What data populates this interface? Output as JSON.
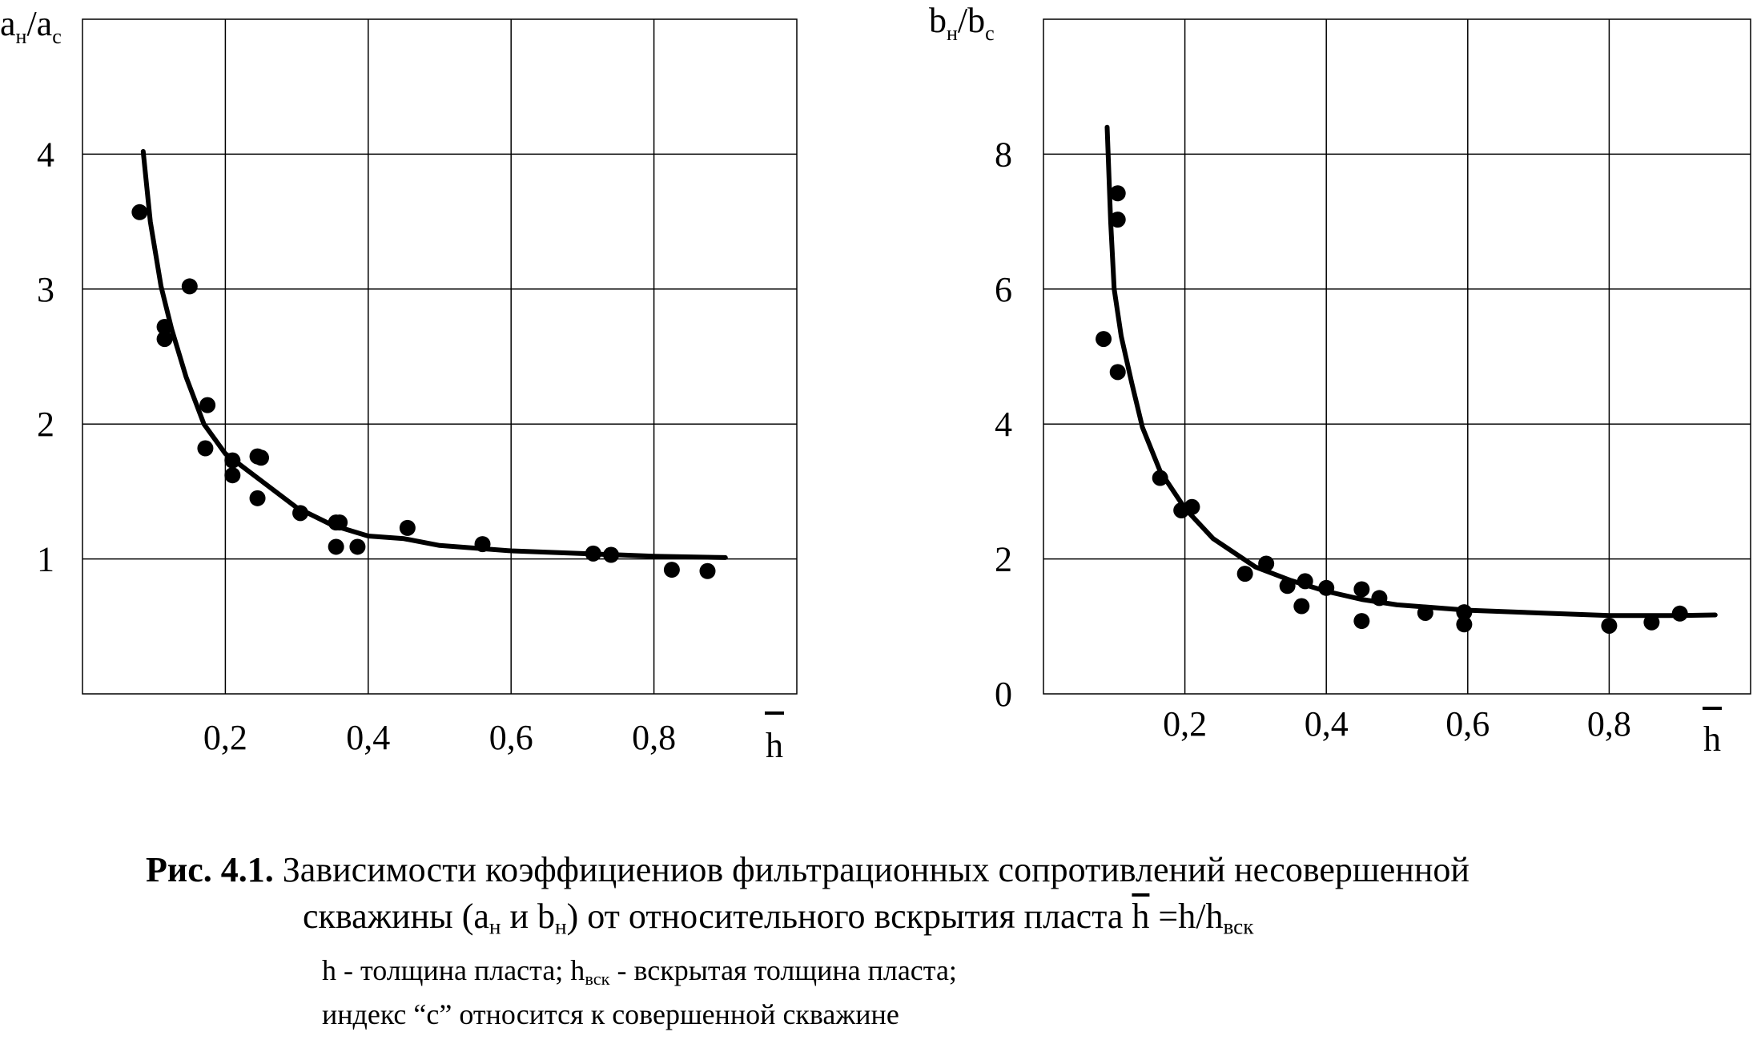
{
  "chart_data": [
    {
      "type": "scatter",
      "ylabel_main": "a",
      "ylabel_sub1": "н",
      "ylabel_mid": "/a",
      "ylabel_sub2": "с",
      "xlabel": "h",
      "xlim": [
        0,
        1.0
      ],
      "ylim": [
        0,
        5
      ],
      "x_ticks": [
        {
          "value": 0.2,
          "label": "0,2"
        },
        {
          "value": 0.4,
          "label": "0,4"
        },
        {
          "value": 0.6,
          "label": "0,6"
        },
        {
          "value": 0.8,
          "label": "0,8"
        }
      ],
      "y_ticks": [
        {
          "value": 1,
          "label": "1"
        },
        {
          "value": 2,
          "label": "2"
        },
        {
          "value": 3,
          "label": "3"
        },
        {
          "value": 4,
          "label": "4"
        }
      ],
      "grid": true,
      "points": [
        [
          0.08,
          3.57
        ],
        [
          0.115,
          2.72
        ],
        [
          0.115,
          2.63
        ],
        [
          0.15,
          3.02
        ],
        [
          0.175,
          2.14
        ],
        [
          0.172,
          1.82
        ],
        [
          0.21,
          1.73
        ],
        [
          0.21,
          1.62
        ],
        [
          0.245,
          1.76
        ],
        [
          0.25,
          1.75
        ],
        [
          0.245,
          1.45
        ],
        [
          0.305,
          1.34
        ],
        [
          0.355,
          1.27
        ],
        [
          0.36,
          1.27
        ],
        [
          0.355,
          1.09
        ],
        [
          0.385,
          1.09
        ],
        [
          0.455,
          1.23
        ],
        [
          0.56,
          1.11
        ],
        [
          0.715,
          1.04
        ],
        [
          0.74,
          1.03
        ],
        [
          0.825,
          0.92
        ],
        [
          0.875,
          0.91
        ]
      ],
      "curve": [
        [
          0.085,
          4.02
        ],
        [
          0.095,
          3.5
        ],
        [
          0.11,
          3.02
        ],
        [
          0.125,
          2.7
        ],
        [
          0.145,
          2.35
        ],
        [
          0.17,
          2.0
        ],
        [
          0.2,
          1.78
        ],
        [
          0.25,
          1.58
        ],
        [
          0.3,
          1.38
        ],
        [
          0.35,
          1.25
        ],
        [
          0.4,
          1.17
        ],
        [
          0.45,
          1.15
        ],
        [
          0.5,
          1.1
        ],
        [
          0.6,
          1.06
        ],
        [
          0.7,
          1.04
        ],
        [
          0.8,
          1.02
        ],
        [
          0.9,
          1.01
        ]
      ]
    },
    {
      "type": "scatter",
      "ylabel_main": "b",
      "ylabel_sub1": "н",
      "ylabel_mid": "/b",
      "ylabel_sub2": "с",
      "xlabel": "h",
      "xlim": [
        0,
        1.0
      ],
      "ylim": [
        0,
        10
      ],
      "x_ticks": [
        {
          "value": 0.2,
          "label": "0,2"
        },
        {
          "value": 0.4,
          "label": "0,4"
        },
        {
          "value": 0.6,
          "label": "0,6"
        },
        {
          "value": 0.8,
          "label": "0,8"
        }
      ],
      "y_ticks": [
        {
          "value": 0,
          "label": "0"
        },
        {
          "value": 2,
          "label": "2"
        },
        {
          "value": 4,
          "label": "4"
        },
        {
          "value": 6,
          "label": "6"
        },
        {
          "value": 8,
          "label": "8"
        }
      ],
      "grid": true,
      "points": [
        [
          0.085,
          5.26
        ],
        [
          0.105,
          7.42
        ],
        [
          0.105,
          7.03
        ],
        [
          0.105,
          4.77
        ],
        [
          0.165,
          3.2
        ],
        [
          0.195,
          2.72
        ],
        [
          0.21,
          2.77
        ],
        [
          0.285,
          1.78
        ],
        [
          0.315,
          1.93
        ],
        [
          0.345,
          1.6
        ],
        [
          0.37,
          1.67
        ],
        [
          0.365,
          1.3
        ],
        [
          0.4,
          1.57
        ],
        [
          0.45,
          1.55
        ],
        [
          0.45,
          1.08
        ],
        [
          0.475,
          1.42
        ],
        [
          0.54,
          1.2
        ],
        [
          0.595,
          1.21
        ],
        [
          0.595,
          1.03
        ],
        [
          0.8,
          1.01
        ],
        [
          0.86,
          1.06
        ],
        [
          0.9,
          1.19
        ]
      ],
      "curve": [
        [
          0.09,
          8.4
        ],
        [
          0.095,
          7.0
        ],
        [
          0.1,
          6.0
        ],
        [
          0.11,
          5.3
        ],
        [
          0.125,
          4.6
        ],
        [
          0.14,
          3.95
        ],
        [
          0.165,
          3.3
        ],
        [
          0.2,
          2.75
        ],
        [
          0.24,
          2.3
        ],
        [
          0.3,
          1.88
        ],
        [
          0.35,
          1.68
        ],
        [
          0.4,
          1.52
        ],
        [
          0.45,
          1.4
        ],
        [
          0.5,
          1.32
        ],
        [
          0.6,
          1.24
        ],
        [
          0.7,
          1.2
        ],
        [
          0.8,
          1.16
        ],
        [
          0.9,
          1.16
        ],
        [
          0.95,
          1.17
        ]
      ]
    }
  ],
  "caption": {
    "fig_label": "Рис. 4.1.",
    "line1_text": " Зависимости коэффициениов фильтрационных сопротивлений несовершенной",
    "line2_a": "скважины (а",
    "line2_sub1": "н",
    "line2_b": " и b",
    "line2_sub2": "н",
    "line2_c": ") от относительного вскрытия пласта  ",
    "line2_hbar": "h",
    "line2_d": " =h/h",
    "line2_sub3": "вск",
    "line3_a": "h - толщина пласта; h",
    "line3_sub": "вск",
    "line3_b": " - вскрытая толщина пласта;",
    "line4": "индекс “с” относится к совершенной скважине"
  }
}
